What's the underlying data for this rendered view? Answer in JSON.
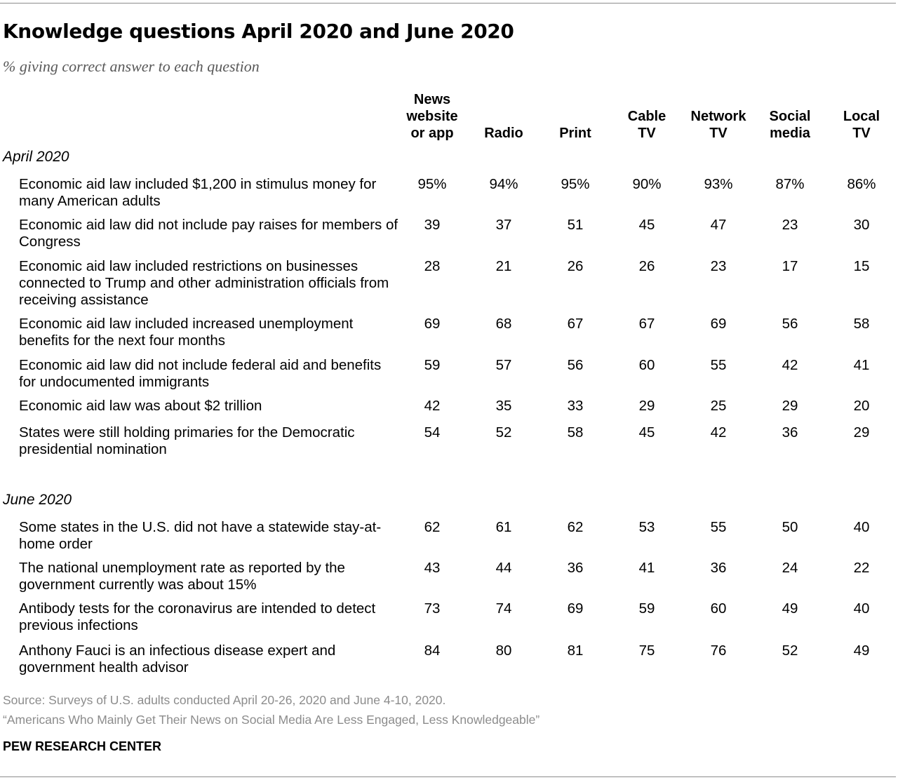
{
  "chart_data": {
    "type": "table",
    "title": "Knowledge questions April 2020 and June 2020",
    "subtitle": "% giving correct answer to each question",
    "columns": [
      "News\nwebsite\nor app",
      "Radio",
      "Print",
      "Cable\nTV",
      "Network\nTV",
      "Social\nmedia",
      "Local\nTV"
    ],
    "sections": [
      {
        "label": "April 2020",
        "rows": [
          {
            "question": "Economic aid law included $1,200 in stimulus money for many American adults",
            "values": [
              "95%",
              "94%",
              "95%",
              "90%",
              "93%",
              "87%",
              "86%"
            ]
          },
          {
            "question": "Economic aid law did not include pay raises for members of Congress",
            "values": [
              "39",
              "37",
              "51",
              "45",
              "47",
              "23",
              "30"
            ]
          },
          {
            "question": "Economic aid law included restrictions on businesses connected to Trump and other administration officials from receiving assistance",
            "values": [
              "28",
              "21",
              "26",
              "26",
              "23",
              "17",
              "15"
            ]
          },
          {
            "question": "Economic aid law included increased unemployment benefits for the next four months",
            "values": [
              "69",
              "68",
              "67",
              "67",
              "69",
              "56",
              "58"
            ]
          },
          {
            "question": "Economic aid law did not include federal aid and benefits for undocumented immigrants",
            "values": [
              "59",
              "57",
              "56",
              "60",
              "55",
              "42",
              "41"
            ]
          },
          {
            "question": "Economic aid law was about $2 trillion",
            "values": [
              "42",
              "35",
              "33",
              "29",
              "25",
              "29",
              "20"
            ]
          },
          {
            "question": "States were still holding primaries for the Democratic presidential nomination",
            "values": [
              "54",
              "52",
              "58",
              "45",
              "42",
              "36",
              "29"
            ]
          }
        ]
      },
      {
        "label": "June 2020",
        "rows": [
          {
            "question": "Some states in the U.S. did not have a statewide stay-at-home order",
            "values": [
              "62",
              "61",
              "62",
              "53",
              "55",
              "50",
              "40"
            ]
          },
          {
            "question": "The national unemployment rate as reported by the government currently was about 15%",
            "values": [
              "43",
              "44",
              "36",
              "41",
              "36",
              "24",
              "22"
            ]
          },
          {
            "question": "Antibody tests for the coronavirus are intended to detect previous infections",
            "values": [
              "73",
              "74",
              "69",
              "59",
              "60",
              "49",
              "40"
            ]
          },
          {
            "question": "Anthony Fauci is an infectious disease expert and government health advisor",
            "values": [
              "84",
              "80",
              "81",
              "75",
              "76",
              "52",
              "49"
            ]
          }
        ]
      }
    ]
  },
  "footer": {
    "source": "Source: Surveys of U.S. adults conducted April 20-26, 2020 and June 4-10, 2020.",
    "report": "“Americans Who Mainly Get Their News on Social Media Are Less Engaged, Less Knowledgeable”",
    "brand": "PEW RESEARCH CENTER"
  }
}
